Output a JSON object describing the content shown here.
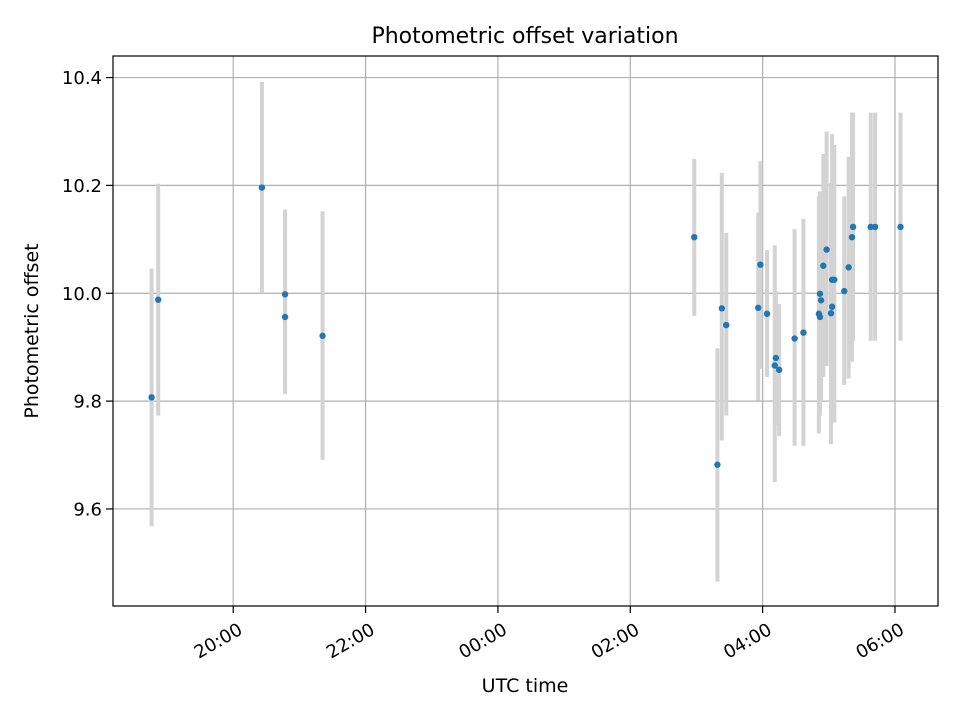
{
  "chart_data": {
    "type": "scatter",
    "title": "Photometric offset variation",
    "xlabel": "UTC time",
    "ylabel": "Photometric offset",
    "x_axis_kind": "time",
    "x_ticks": [
      "20:00",
      "22:00",
      "00:00",
      "02:00",
      "04:00",
      "06:00"
    ],
    "y_ticks": [
      "9.6",
      "9.8",
      "10.0",
      "10.2",
      "10.4"
    ],
    "ylim": [
      9.42,
      10.44
    ],
    "xlim": [
      "18:11",
      "06:39"
    ],
    "grid": true,
    "colors": {
      "points": "#1f77b4",
      "error_bars": "#d3d3d3",
      "grid": "#b0b0b0"
    },
    "points": [
      {
        "t": "18:46",
        "y": 9.807,
        "err_lo": 9.568,
        "err_hi": 10.046
      },
      {
        "t": "18:52",
        "y": 9.988,
        "err_lo": 9.773,
        "err_hi": 10.203
      },
      {
        "t": "20:26",
        "y": 10.196,
        "err_lo": 10.0,
        "err_hi": 10.392
      },
      {
        "t": "20:47",
        "y": 9.998,
        "err_lo": 9.84,
        "err_hi": 10.155
      },
      {
        "t": "20:47",
        "y": 9.956,
        "err_lo": 9.813,
        "err_hi": 10.101
      },
      {
        "t": "21:21",
        "y": 9.921,
        "err_lo": 9.691,
        "err_hi": 10.152
      },
      {
        "t": "02:58",
        "y": 10.104,
        "err_lo": 9.958,
        "err_hi": 10.249
      },
      {
        "t": "03:19",
        "y": 9.682,
        "err_lo": 9.465,
        "err_hi": 9.898
      },
      {
        "t": "03:23",
        "y": 9.972,
        "err_lo": 9.727,
        "err_hi": 10.223
      },
      {
        "t": "03:27",
        "y": 9.941,
        "err_lo": 9.773,
        "err_hi": 10.112
      },
      {
        "t": "03:56",
        "y": 9.973,
        "err_lo": 9.801,
        "err_hi": 10.15
      },
      {
        "t": "03:58",
        "y": 10.053,
        "err_lo": 9.86,
        "err_hi": 10.245
      },
      {
        "t": "04:04",
        "y": 9.962,
        "err_lo": 9.845,
        "err_hi": 10.08
      },
      {
        "t": "04:11",
        "y": 9.866,
        "err_lo": 9.65,
        "err_hi": 10.089
      },
      {
        "t": "04:12",
        "y": 9.88,
        "err_lo": 9.756,
        "err_hi": 10.004
      },
      {
        "t": "04:15",
        "y": 9.858,
        "err_lo": 9.735,
        "err_hi": 9.98
      },
      {
        "t": "04:29",
        "y": 9.916,
        "err_lo": 9.717,
        "err_hi": 10.119
      },
      {
        "t": "04:37",
        "y": 9.927,
        "err_lo": 9.717,
        "err_hi": 10.138
      },
      {
        "t": "04:51",
        "y": 9.962,
        "err_lo": 9.74,
        "err_hi": 10.18
      },
      {
        "t": "04:52",
        "y": 9.956,
        "err_lo": 9.773,
        "err_hi": 10.15
      },
      {
        "t": "04:52",
        "y": 9.999,
        "err_lo": 9.81,
        "err_hi": 10.189
      },
      {
        "t": "04:53",
        "y": 9.987,
        "err_lo": 9.8,
        "err_hi": 10.174
      },
      {
        "t": "04:55",
        "y": 10.051,
        "err_lo": 9.845,
        "err_hi": 10.258
      },
      {
        "t": "04:58",
        "y": 10.081,
        "err_lo": 9.865,
        "err_hi": 10.3
      },
      {
        "t": "05:02",
        "y": 9.963,
        "err_lo": 9.72,
        "err_hi": 10.204
      },
      {
        "t": "05:03",
        "y": 9.975,
        "err_lo": 9.77,
        "err_hi": 10.18
      },
      {
        "t": "05:03",
        "y": 10.025,
        "err_lo": 9.76,
        "err_hi": 10.295
      },
      {
        "t": "05:05",
        "y": 10.025,
        "err_lo": 9.76,
        "err_hi": 10.275
      },
      {
        "t": "05:14",
        "y": 10.004,
        "err_lo": 9.83,
        "err_hi": 10.18
      },
      {
        "t": "05:18",
        "y": 10.048,
        "err_lo": 9.842,
        "err_hi": 10.253
      },
      {
        "t": "05:21",
        "y": 10.104,
        "err_lo": 9.873,
        "err_hi": 10.335
      },
      {
        "t": "05:22",
        "y": 10.123,
        "err_lo": 9.912,
        "err_hi": 10.335
      },
      {
        "t": "05:38",
        "y": 10.123,
        "err_lo": 9.912,
        "err_hi": 10.335
      },
      {
        "t": "05:42",
        "y": 10.123,
        "err_lo": 9.912,
        "err_hi": 10.335
      },
      {
        "t": "06:05",
        "y": 10.123,
        "err_lo": 9.912,
        "err_hi": 10.335
      }
    ]
  }
}
